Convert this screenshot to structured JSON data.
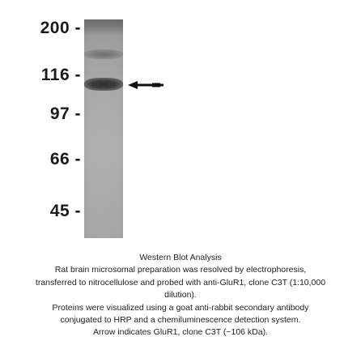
{
  "blot": {
    "markers": [
      "200 -",
      "116 -",
      "97 -",
      "66 -",
      "45 -"
    ]
  },
  "caption": {
    "lines": [
      "Western Blot Analysis",
      "Rat brain microsomal preparation was resolved by electrophoresis,",
      "transferred to nitrocellulose and probed with anti-GluR1, clone C3T (1:10,000",
      "dilution).",
      "Proteins were visualized using a goat anti-rabbit secondary antibody",
      "conjugated to HRP and a chemiluminescence detection system.",
      "Arrow indicates GluR1, clone C3T (~106 kDa)."
    ]
  }
}
